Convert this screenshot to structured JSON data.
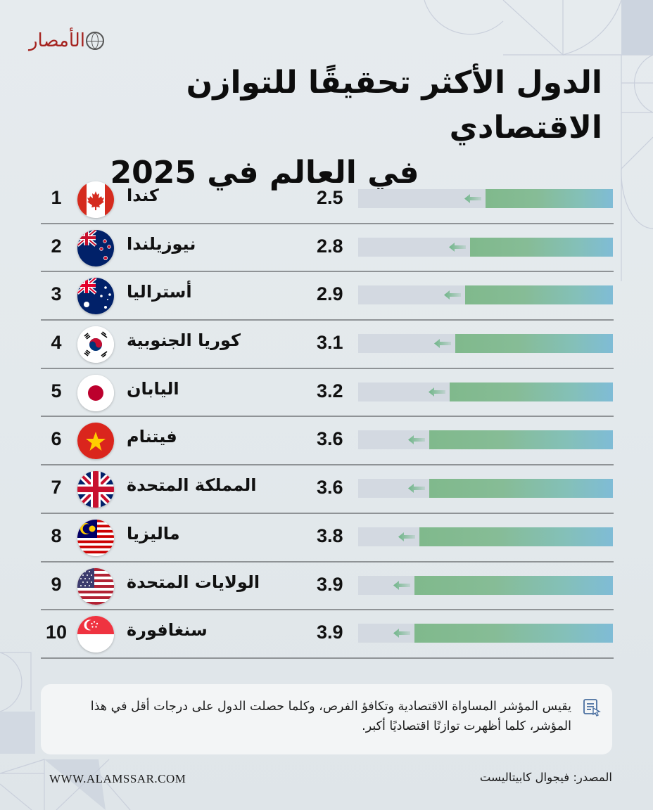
{
  "brand": {
    "logo_text": "الأمصار",
    "website": "WWW.ALAMSSAR.COM",
    "accent": "#a5231f"
  },
  "title": {
    "line1": "الدول الأكثر تحقيقًا للتوازن الاقتصادي",
    "line2": "في العالم في 2025"
  },
  "chart_data": {
    "type": "bar",
    "orientation": "horizontal",
    "title": "الدول الأكثر تحقيقًا للتوازن الاقتصادي في العالم في 2025",
    "xlabel": "",
    "ylabel": "",
    "xlim": [
      0,
      5
    ],
    "grid": false,
    "legend": "none",
    "categories": [
      "كندا",
      "نيوزيلندا",
      "أستراليا",
      "كوريا الجنوبية",
      "اليابان",
      "فيتنام",
      "المملكة المتحدة",
      "ماليزيا",
      "الولايات المتحدة",
      "سنغافورة"
    ],
    "ranks": [
      1,
      2,
      3,
      4,
      5,
      6,
      7,
      8,
      9,
      10
    ],
    "values": [
      2.5,
      2.8,
      2.9,
      3.1,
      3.2,
      3.6,
      3.6,
      3.8,
      3.9,
      3.9
    ],
    "value_labels": [
      "2.5",
      "2.8",
      "2.9",
      "3.1",
      "3.2",
      "3.6",
      "3.6",
      "3.8",
      "3.9",
      "3.9"
    ],
    "flags": [
      "canada-flag",
      "new-zealand-flag",
      "australia-flag",
      "south-korea-flag",
      "japan-flag",
      "vietnam-flag",
      "uk-flag",
      "malaysia-flag",
      "usa-flag",
      "singapore-flag"
    ],
    "colors": {
      "bar_start": "#80b98c",
      "bar_end": "#7fbcd6",
      "track": "#d3d9e1",
      "arrow": "#6fb588"
    }
  },
  "note": {
    "icon": "document-cursor-icon",
    "text": "يقيس المؤشر المساواة الاقتصادية وتكافؤ الفرص، وكلما حصلت الدول على درجات أقل في هذا المؤشر، كلما أظهرت توازنًا اقتصاديًا أكبر."
  },
  "source": {
    "text": "المصدر: فيجوال كابيتاليست"
  }
}
